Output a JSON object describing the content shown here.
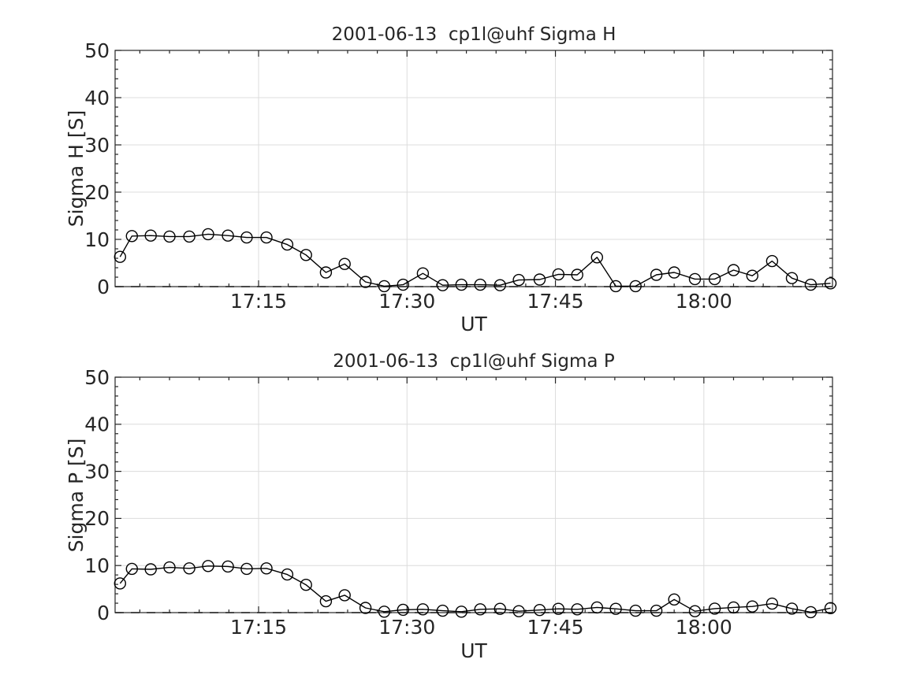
{
  "figure": {
    "background": "#ffffff",
    "axes_color": "#262626",
    "text_color": "#262626"
  },
  "chart_data": [
    {
      "type": "line",
      "title": "2001-06-13  cp1l@uhf Sigma H",
      "xlabel": "UT",
      "ylabel": "Sigma H [S]",
      "series_name": "Sigma H",
      "marker": "open-circle",
      "line_color": "#000000",
      "grid": true,
      "grid_color": "#dcdcdc",
      "zero_line_dashed": true,
      "ylim": [
        0,
        50
      ],
      "yticks": [
        0,
        10,
        20,
        30,
        40,
        50
      ],
      "y_minor_step": 2,
      "xlim_minutes_after_1700UT": [
        0.5,
        73
      ],
      "x_minor_step_minutes": 3,
      "xticks": [
        {
          "minutes": 15,
          "label": "17:15"
        },
        {
          "minutes": 30,
          "label": "17:30"
        },
        {
          "minutes": 45,
          "label": "17:45"
        },
        {
          "minutes": 60,
          "label": "18:00"
        }
      ],
      "x_minutes_after_1700UT": [
        1.0,
        2.2,
        4.1,
        6.0,
        8.0,
        9.9,
        11.9,
        13.8,
        15.8,
        17.9,
        19.8,
        21.8,
        23.7,
        25.8,
        27.7,
        29.6,
        31.6,
        33.6,
        35.5,
        37.4,
        39.4,
        41.3,
        43.4,
        45.3,
        47.2,
        49.2,
        51.1,
        53.1,
        55.2,
        57.0,
        59.1,
        61.1,
        63.0,
        64.9,
        66.9,
        68.9,
        70.8,
        72.8
      ],
      "values": [
        6.3,
        10.7,
        10.8,
        10.6,
        10.6,
        11.1,
        10.8,
        10.4,
        10.4,
        8.9,
        6.7,
        3.0,
        4.8,
        1.0,
        0.1,
        0.4,
        2.8,
        0.3,
        0.4,
        0.4,
        0.3,
        1.4,
        1.5,
        2.6,
        2.5,
        6.2,
        0.1,
        0.1,
        2.5,
        3.0,
        1.6,
        1.6,
        3.5,
        2.3,
        5.4,
        1.8,
        0.4,
        0.7
      ]
    },
    {
      "type": "line",
      "title": "2001-06-13  cp1l@uhf Sigma P",
      "xlabel": "UT",
      "ylabel": "Sigma P [S]",
      "series_name": "Sigma P",
      "marker": "open-circle",
      "line_color": "#000000",
      "grid": true,
      "grid_color": "#dcdcdc",
      "zero_line_dashed": true,
      "ylim": [
        0,
        50
      ],
      "yticks": [
        0,
        10,
        20,
        30,
        40,
        50
      ],
      "y_minor_step": 2,
      "xlim_minutes_after_1700UT": [
        0.5,
        73
      ],
      "x_minor_step_minutes": 3,
      "xticks": [
        {
          "minutes": 15,
          "label": "17:15"
        },
        {
          "minutes": 30,
          "label": "17:30"
        },
        {
          "minutes": 45,
          "label": "17:45"
        },
        {
          "minutes": 60,
          "label": "18:00"
        }
      ],
      "x_minutes_after_1700UT": [
        1.0,
        2.2,
        4.1,
        6.0,
        8.0,
        9.9,
        11.9,
        13.8,
        15.8,
        17.9,
        19.8,
        21.8,
        23.7,
        25.8,
        27.7,
        29.6,
        31.6,
        33.6,
        35.5,
        37.4,
        39.4,
        41.3,
        43.4,
        45.3,
        47.2,
        49.2,
        51.1,
        53.1,
        55.2,
        57.0,
        59.1,
        61.1,
        63.0,
        64.9,
        66.9,
        68.9,
        70.8,
        72.8
      ],
      "values": [
        6.2,
        9.3,
        9.2,
        9.6,
        9.4,
        9.9,
        9.8,
        9.3,
        9.4,
        8.1,
        5.9,
        2.4,
        3.7,
        1.0,
        0.2,
        0.6,
        0.7,
        0.4,
        0.2,
        0.7,
        0.8,
        0.3,
        0.55,
        0.8,
        0.7,
        1.1,
        0.8,
        0.4,
        0.4,
        2.8,
        0.3,
        0.85,
        1.1,
        1.3,
        1.9,
        0.85,
        0.1,
        0.95
      ]
    }
  ]
}
